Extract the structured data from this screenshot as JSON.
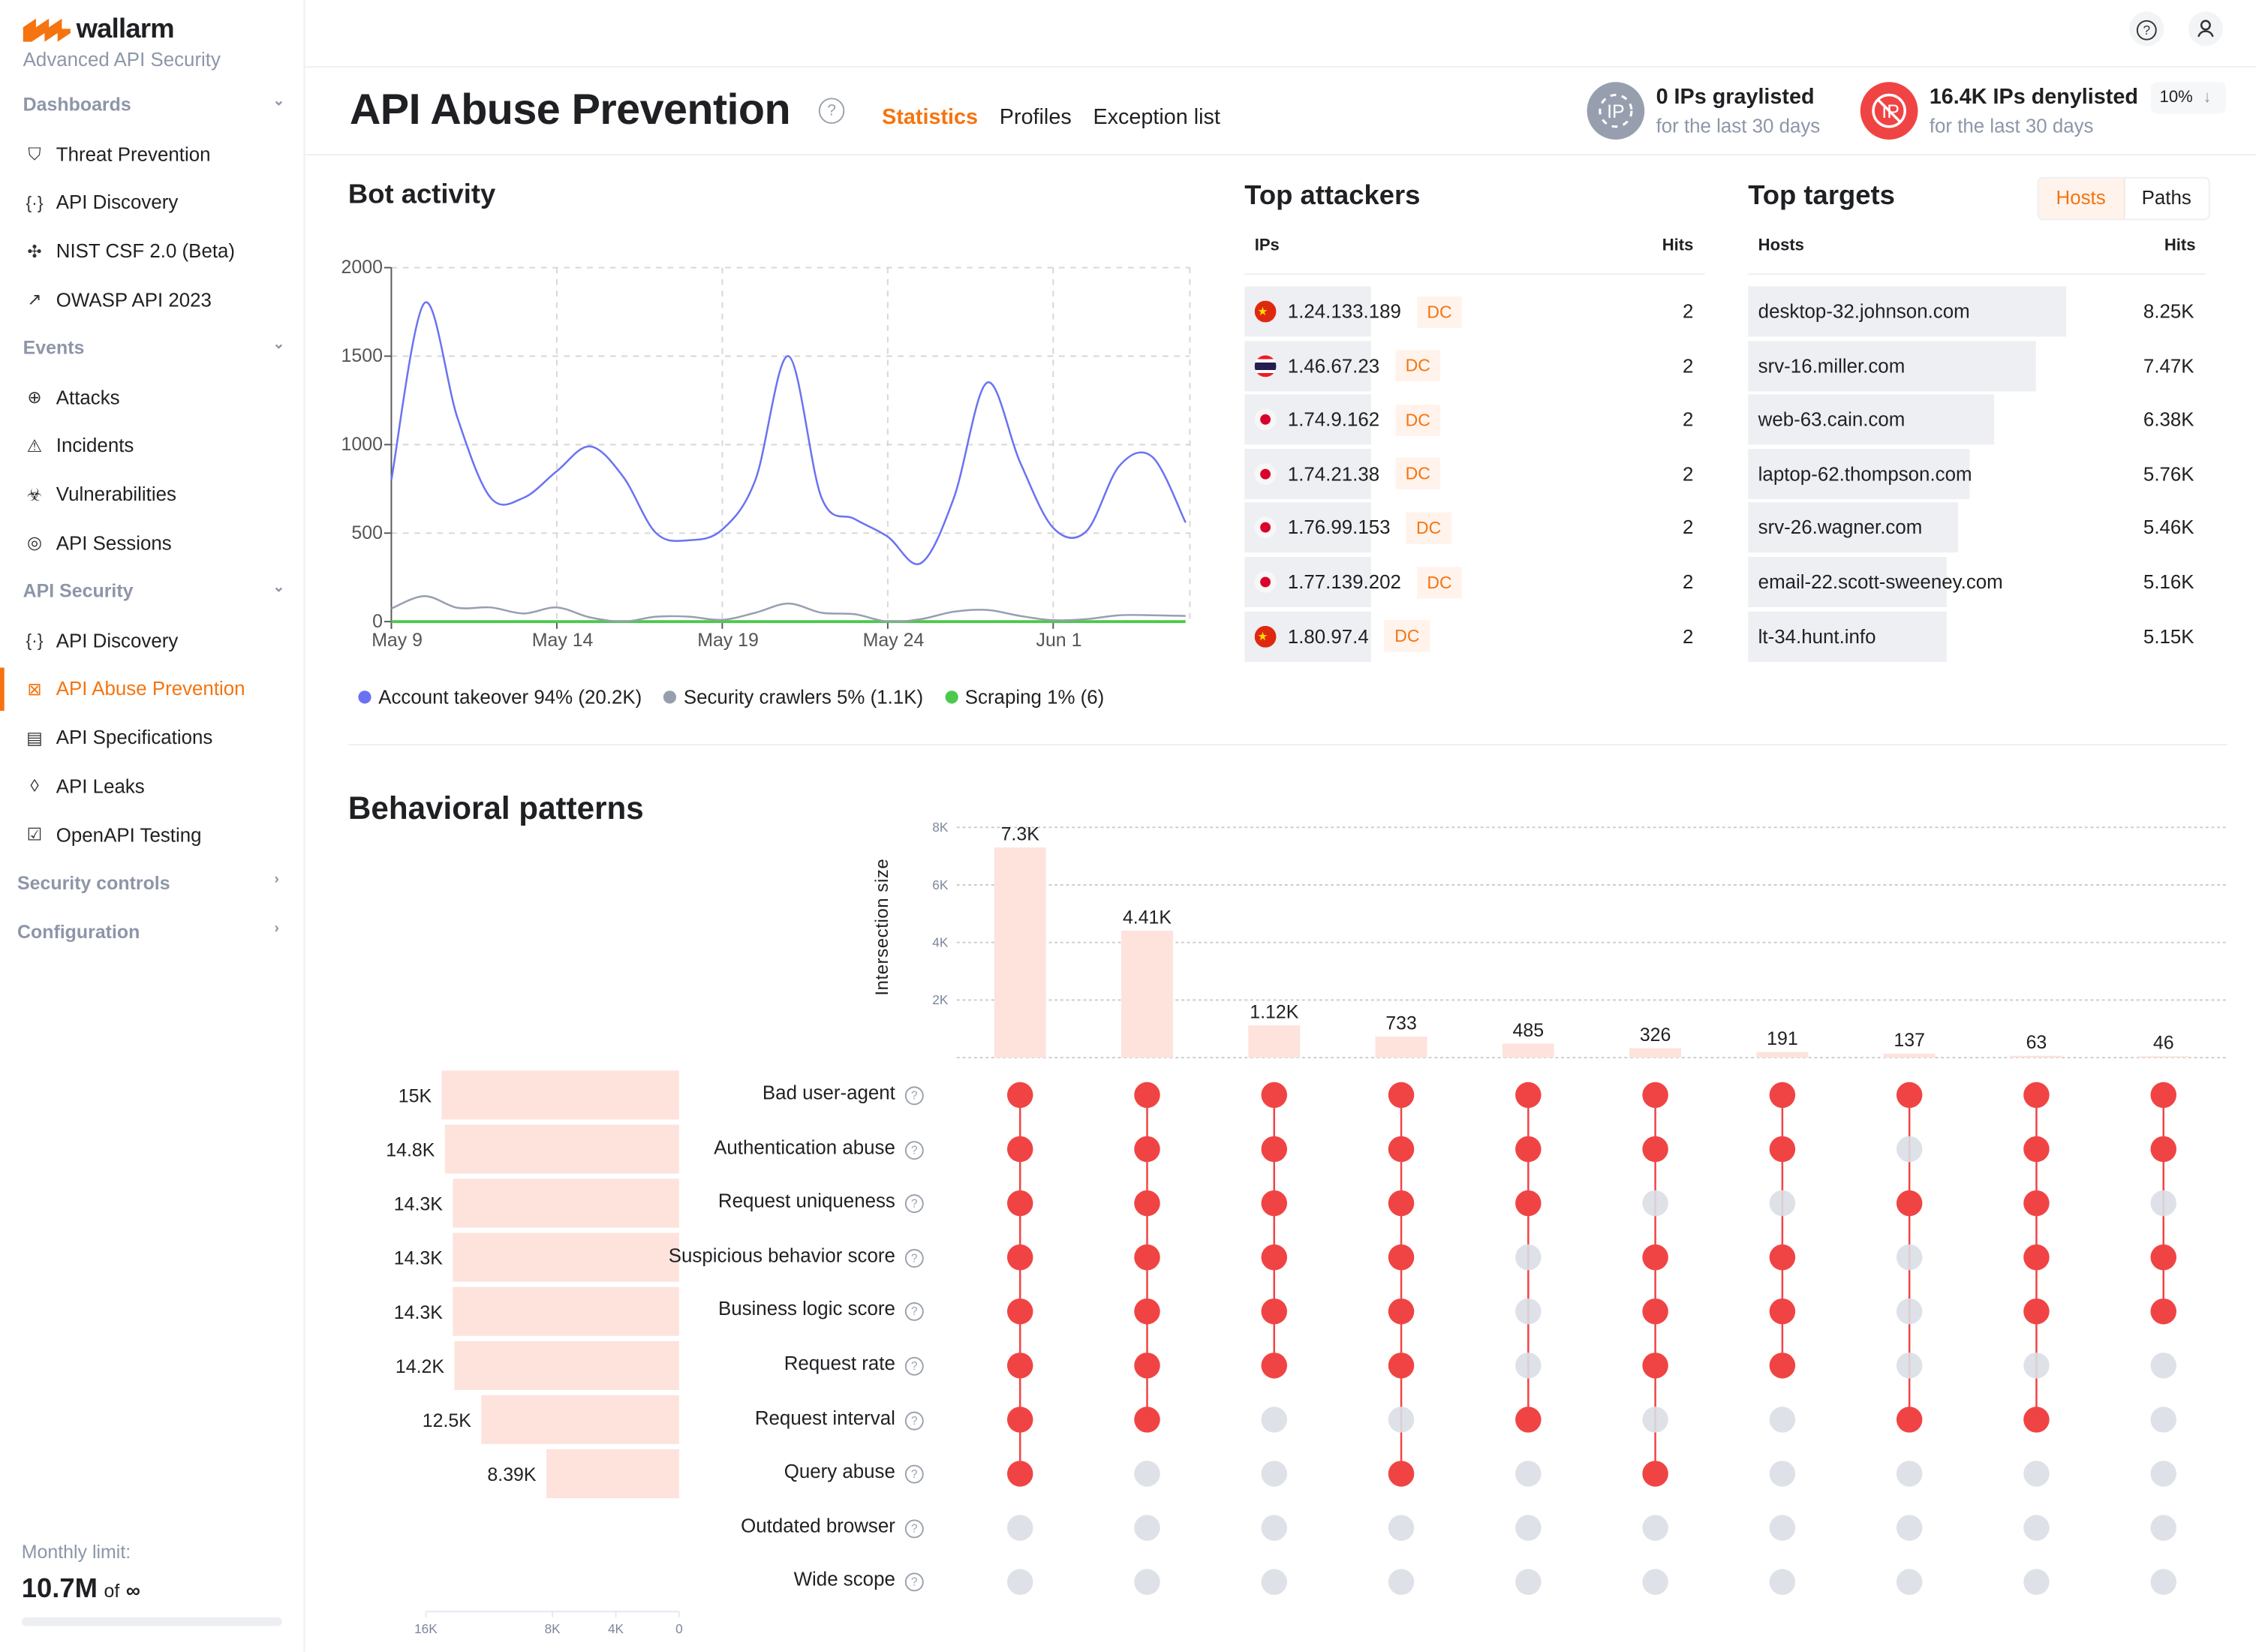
{
  "brand": {
    "name": "wallarm",
    "tagline": "Advanced API Security",
    "accent": "#f5740f"
  },
  "sidebar": {
    "sections": [
      {
        "label": "Dashboards",
        "items": [
          {
            "label": "Threat Prevention",
            "icon": "shield-bolt-icon"
          },
          {
            "label": "API Discovery",
            "icon": "braces-check-icon"
          },
          {
            "label": "NIST CSF 2.0 (Beta)",
            "icon": "nist-icon"
          },
          {
            "label": "OWASP API 2023",
            "icon": "owasp-icon"
          }
        ]
      },
      {
        "label": "Events",
        "items": [
          {
            "label": "Attacks",
            "icon": "crosshair-icon"
          },
          {
            "label": "Incidents",
            "icon": "warning-icon"
          },
          {
            "label": "Vulnerabilities",
            "icon": "bug-icon"
          },
          {
            "label": "API Sessions",
            "icon": "fingerprint-icon"
          }
        ]
      },
      {
        "label": "API Security",
        "items": [
          {
            "label": "API Discovery",
            "icon": "braces-check-icon"
          },
          {
            "label": "API Abuse Prevention",
            "icon": "bot-icon",
            "active": true
          },
          {
            "label": "API Specifications",
            "icon": "document-icon"
          },
          {
            "label": "API Leaks",
            "icon": "drop-icon"
          },
          {
            "label": "OpenAPI Testing",
            "icon": "checklist-icon"
          }
        ]
      },
      {
        "label": "Security controls",
        "items": []
      },
      {
        "label": "Configuration",
        "items": []
      }
    ],
    "monthly_limit": {
      "label": "Monthly limit:",
      "value": "10.7M",
      "of": "of",
      "limit": "∞"
    }
  },
  "header": {
    "title": "API Abuse Prevention",
    "tabs": [
      {
        "label": "Statistics",
        "active": true
      },
      {
        "label": "Profiles"
      },
      {
        "label": "Exception list"
      }
    ],
    "graylisted": {
      "title": "0 IPs graylisted",
      "sub": "for the last 30 days"
    },
    "denylisted": {
      "title": "16.4K IPs denylisted",
      "sub": "for the last 30 days",
      "change": "10%",
      "change_icon": "arrow-down-icon"
    }
  },
  "bot_activity": {
    "title": "Bot activity"
  },
  "chart_data": [
    {
      "type": "line",
      "title": "Bot activity",
      "ylim": [
        0,
        2000
      ],
      "yticks": [
        0,
        500,
        1000,
        1500,
        2000
      ],
      "x_ticks": [
        {
          "index": 0,
          "label": "May 9"
        },
        {
          "index": 5,
          "label": "May 14"
        },
        {
          "index": 10,
          "label": "May 19"
        },
        {
          "index": 15,
          "label": "May 24"
        },
        {
          "index": 20,
          "label": "Jun 1"
        }
      ],
      "grid": true,
      "legend": "bottom",
      "series": [
        {
          "name": "Account takeover 94% (20.2K)",
          "color": "#6b72f2",
          "values": [
            800,
            1800,
            1150,
            700,
            700,
            850,
            990,
            820,
            500,
            460,
            520,
            800,
            1500,
            700,
            580,
            480,
            330,
            700,
            1350,
            900,
            530,
            510,
            880,
            930,
            560
          ]
        },
        {
          "name": "Security crawlers 5% (1.1K)",
          "color": "#979faf",
          "values": [
            74,
            144,
            78,
            80,
            46,
            80,
            24,
            0,
            28,
            28,
            10,
            50,
            102,
            50,
            42,
            0,
            14,
            56,
            66,
            32,
            8,
            14,
            36,
            36,
            32
          ]
        },
        {
          "name": "Scraping 1% (6)",
          "color": "#4cc94c",
          "values": [
            0,
            0,
            0,
            0,
            0,
            0,
            0,
            0,
            0,
            0,
            0,
            0,
            0,
            0,
            0,
            0,
            0,
            0,
            0,
            0,
            0,
            0,
            0,
            0,
            0
          ]
        }
      ]
    },
    {
      "type": "bar",
      "title": "Behavioral patterns",
      "ylabel": "Intersection size",
      "ylim": [
        0,
        8000
      ],
      "yticks": [
        {
          "v": 2000,
          "label": "2K"
        },
        {
          "v": 4000,
          "label": "4K"
        },
        {
          "v": 6000,
          "label": "6K"
        },
        {
          "v": 8000,
          "label": "8K"
        }
      ],
      "values": [
        7300,
        4410,
        1120,
        733,
        485,
        326,
        191,
        137,
        63,
        46
      ],
      "labels": [
        "7.3K",
        "4.41K",
        "1.12K",
        "733",
        "485",
        "326",
        "191",
        "137",
        "63",
        "46"
      ],
      "sets": [
        {
          "label": "Bad user-agent",
          "size": 15000,
          "size_label": "15K"
        },
        {
          "label": "Authentication abuse",
          "size": 14800,
          "size_label": "14.8K"
        },
        {
          "label": "Request uniqueness",
          "size": 14300,
          "size_label": "14.3K"
        },
        {
          "label": "Suspicious behavior score",
          "size": 14300,
          "size_label": "14.3K"
        },
        {
          "label": "Business logic score",
          "size": 14300,
          "size_label": "14.3K"
        },
        {
          "label": "Request rate",
          "size": 14200,
          "size_label": "14.2K"
        },
        {
          "label": "Request interval",
          "size": 12500,
          "size_label": "12.5K"
        },
        {
          "label": "Query abuse",
          "size": 8390,
          "size_label": "8.39K"
        },
        {
          "label": "Outdated browser",
          "size": 0,
          "size_label": ""
        },
        {
          "label": "Wide scope",
          "size": 0,
          "size_label": ""
        }
      ],
      "set_axis": {
        "max": 16000,
        "ticks": [
          {
            "v": 16000,
            "label": "16K"
          },
          {
            "v": 8000,
            "label": "8K"
          },
          {
            "v": 4000,
            "label": "4K"
          },
          {
            "v": 0,
            "label": "0"
          }
        ]
      },
      "matrix": [
        [
          1,
          1,
          1,
          1,
          1,
          1,
          1,
          1,
          0,
          0
        ],
        [
          1,
          1,
          1,
          1,
          1,
          1,
          1,
          0,
          0,
          0
        ],
        [
          1,
          1,
          1,
          1,
          1,
          1,
          0,
          0,
          0,
          0
        ],
        [
          1,
          1,
          1,
          1,
          1,
          1,
          0,
          1,
          0,
          0
        ],
        [
          1,
          1,
          1,
          0,
          0,
          0,
          1,
          0,
          0,
          0
        ],
        [
          1,
          1,
          0,
          1,
          1,
          1,
          0,
          1,
          0,
          0
        ],
        [
          1,
          1,
          0,
          1,
          1,
          1,
          0,
          0,
          0,
          0
        ],
        [
          1,
          0,
          1,
          0,
          0,
          0,
          1,
          0,
          0,
          0
        ],
        [
          1,
          1,
          1,
          1,
          1,
          0,
          1,
          0,
          0,
          0
        ],
        [
          1,
          1,
          0,
          1,
          1,
          0,
          0,
          0,
          0,
          0
        ]
      ],
      "active_color": "#f04444",
      "inactive_color": "#dadee4",
      "bar_color": "#fde3dc"
    }
  ],
  "top_attackers": {
    "title": "Top attackers",
    "col_ip": "IPs",
    "col_hits": "Hits",
    "badge": "DC",
    "rows": [
      {
        "ip": "1.24.133.189",
        "flag": "cn",
        "hits": "2"
      },
      {
        "ip": "1.46.67.23",
        "flag": "th",
        "hits": "2"
      },
      {
        "ip": "1.74.9.162",
        "flag": "jp",
        "hits": "2"
      },
      {
        "ip": "1.74.21.38",
        "flag": "jp",
        "hits": "2"
      },
      {
        "ip": "1.76.99.153",
        "flag": "jp",
        "hits": "2"
      },
      {
        "ip": "1.77.139.202",
        "flag": "jp",
        "hits": "2"
      },
      {
        "ip": "1.80.97.4",
        "flag": "cn",
        "hits": "2"
      }
    ]
  },
  "top_targets": {
    "title": "Top targets",
    "tabs": [
      {
        "label": "Hosts",
        "active": true
      },
      {
        "label": "Paths"
      }
    ],
    "col_host": "Hosts",
    "col_hits": "Hits",
    "rows": [
      {
        "host": "desktop-32.johnson.com",
        "hits": "8.25K",
        "value": 8250
      },
      {
        "host": "srv-16.miller.com",
        "hits": "7.47K",
        "value": 7470
      },
      {
        "host": "web-63.cain.com",
        "hits": "6.38K",
        "value": 6380
      },
      {
        "host": "laptop-62.thompson.com",
        "hits": "5.76K",
        "value": 5760
      },
      {
        "host": "srv-26.wagner.com",
        "hits": "5.46K",
        "value": 5460
      },
      {
        "host": "email-22.scott-sweeney.com",
        "hits": "5.16K",
        "value": 5160
      },
      {
        "host": "lt-34.hunt.info",
        "hits": "5.15K",
        "value": 5150
      }
    ]
  }
}
